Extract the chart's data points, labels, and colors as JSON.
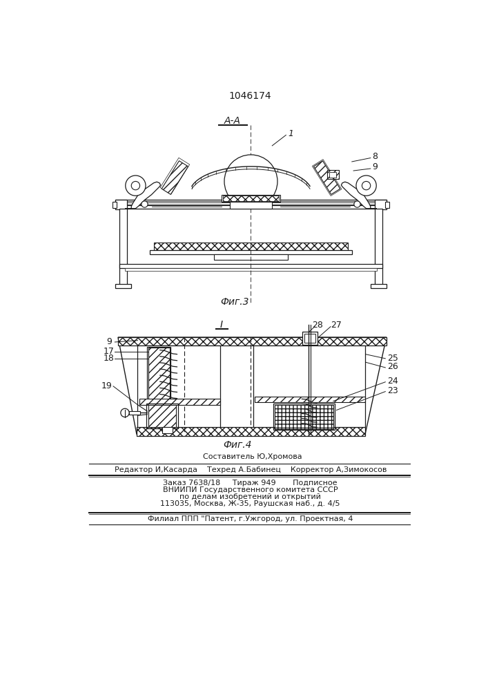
{
  "patent_number": "1046174",
  "fig3_label": "Фиг.3",
  "fig4_label": "Фиг.4",
  "section_label": "A-A",
  "fig4_section_label": "I",
  "bg_color": "#ffffff",
  "line_color": "#1a1a1a",
  "footer_lines": [
    "  Составитель Ю,Хромова",
    "Редактор И,Касарда    Техред А.Бабинец    Корректор А,Зимокосов",
    "Заказ 7638/18     Тираж 949       Подписное",
    "ВНИИПИ Государственного комитета СССР",
    "по делам изобретений и открытий",
    "113035, Москва, Ж-35, Раушская наб., д. 4/5",
    "Филиал ППП \"Патент, г.Ужгород, ул. Проектная, 4"
  ]
}
